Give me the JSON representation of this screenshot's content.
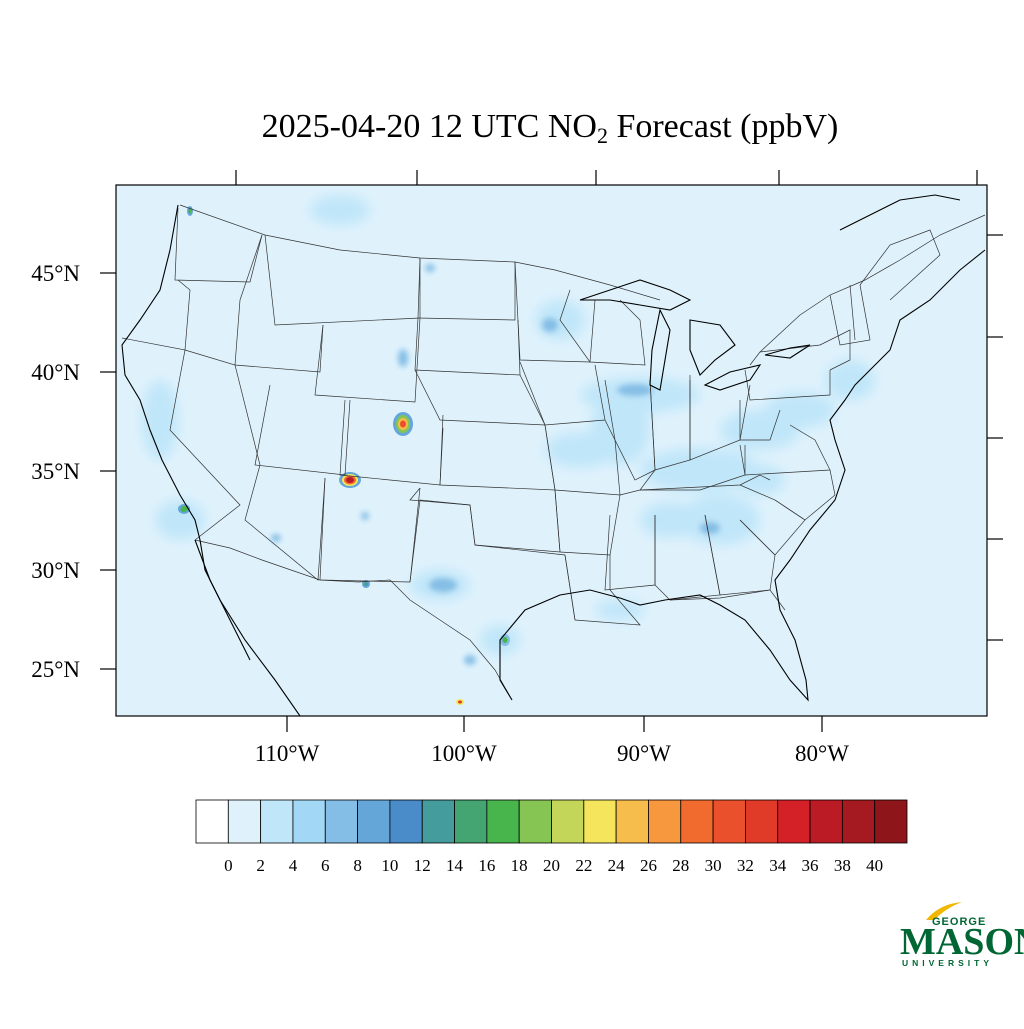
{
  "title": {
    "prefix": "2025-04-20 12 UTC NO",
    "subscript": "2",
    "suffix": " Forecast (ppbV)"
  },
  "lat_labels": [
    "45°N",
    "40°N",
    "35°N",
    "30°N",
    "25°N"
  ],
  "lon_labels": [
    "110°W",
    "100°W",
    "90°W",
    "80°W"
  ],
  "colorbar": {
    "tick_labels": [
      "0",
      "2",
      "4",
      "6",
      "8",
      "10",
      "12",
      "14",
      "16",
      "18",
      "20",
      "22",
      "24",
      "26",
      "28",
      "30",
      "32",
      "34",
      "36",
      "38",
      "40"
    ],
    "colors": [
      "#ffffff",
      "#dff2fc",
      "#c0e6f9",
      "#a2d8f5",
      "#84bde5",
      "#64a6d8",
      "#4a8bc9",
      "#459c9c",
      "#44a572",
      "#48b54c",
      "#86c553",
      "#c3d659",
      "#f4e55c",
      "#f7bd4c",
      "#f7973e",
      "#f26b2e",
      "#e9502b",
      "#e03a28",
      "#d42027",
      "#bb1b24",
      "#a51a20",
      "#8e161b"
    ]
  },
  "map": {
    "background_color": "#dff2fc",
    "hotspots": [
      {
        "name": "denver",
        "level": 32
      },
      {
        "name": "albuquerque",
        "level": 38
      },
      {
        "name": "los-angeles",
        "level": 18
      },
      {
        "name": "seattle",
        "level": 16
      },
      {
        "name": "el-paso",
        "level": 14
      },
      {
        "name": "monterrey",
        "level": 18
      },
      {
        "name": "mexico-north",
        "level": 30
      }
    ]
  },
  "logo": {
    "line1": "GEORGE",
    "line2": "MASON",
    "line3": "UNIVERSITY",
    "color": "#006633",
    "accent": "#f2b700"
  }
}
